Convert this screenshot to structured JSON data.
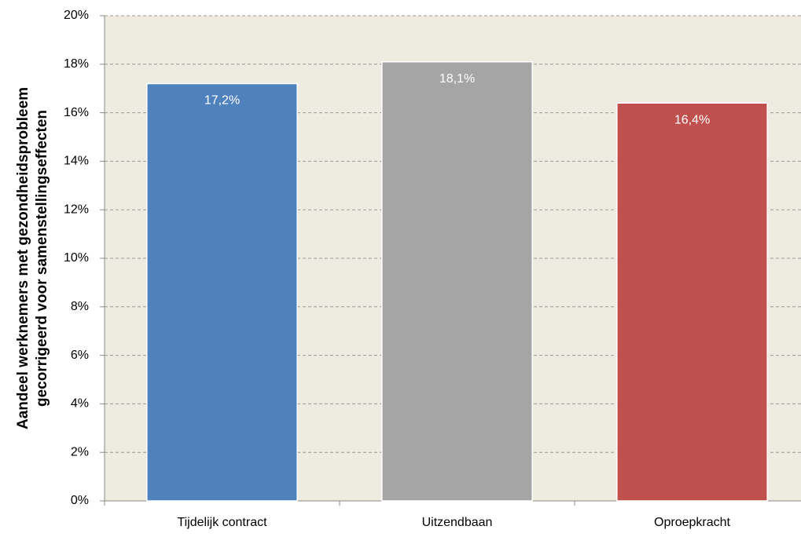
{
  "chart_data": {
    "type": "bar",
    "y_label": [
      "Aandeel werknemers met gezondheidsprobleem",
      "gecorrigeerd voor samenstellingseffecten"
    ],
    "categories": [
      "Tijdelijk contract",
      "Uitzendbaan",
      "Oproepkracht"
    ],
    "values": [
      17.2,
      18.1,
      16.4
    ],
    "value_labels": [
      "17,2%",
      "18,1%",
      "16,4%"
    ],
    "colors": [
      "#4f81bd",
      "#a5a5a5",
      "#c0504d"
    ],
    "ylim": [
      0,
      20
    ],
    "yticks": [
      {
        "value": 0,
        "label": "0%"
      },
      {
        "value": 2,
        "label": "2%"
      },
      {
        "value": 4,
        "label": "4%"
      },
      {
        "value": 6,
        "label": "6%"
      },
      {
        "value": 8,
        "label": "8%"
      },
      {
        "value": 10,
        "label": "10%"
      },
      {
        "value": 12,
        "label": "12%"
      },
      {
        "value": 14,
        "label": "14%"
      },
      {
        "value": 16,
        "label": "16%"
      },
      {
        "value": 18,
        "label": "18%"
      },
      {
        "value": 20,
        "label": "20%"
      }
    ],
    "grid": true,
    "background": "#eeece1"
  }
}
